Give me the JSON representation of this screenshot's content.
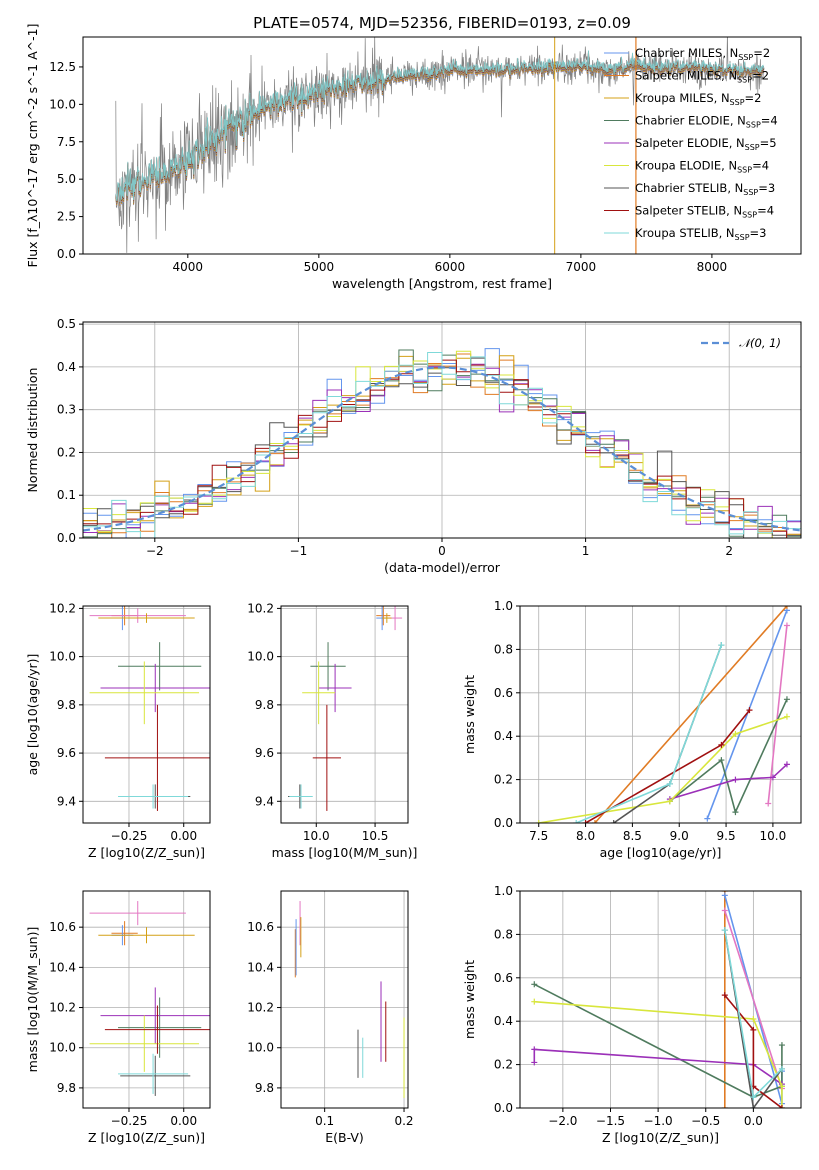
{
  "palette": [
    "#6495ed",
    "#e07b24",
    "#d4a017",
    "#4f7b5e",
    "#9b30b8",
    "#d8e63c",
    "#555555",
    "#a01010",
    "#7fd9d9",
    "#e377c2"
  ],
  "chart_data": [
    {
      "id": "spectrum",
      "type": "line",
      "title": "PLATE=0574, MJD=52356, FIBERID=0193, z=0.09",
      "xlabel": "wavelength [Angstrom, rest frame]",
      "ylabel": "Flux [f_λ10^-17 erg cm^-2 s^-1 A^-1]",
      "xlim": [
        3200,
        8680
      ],
      "ylim": [
        0,
        14.5
      ],
      "xticks": [
        4000,
        5000,
        6000,
        7000,
        8000
      ],
      "yticks": [
        0.0,
        2.5,
        5.0,
        7.5,
        10.0,
        12.5
      ],
      "grid": false,
      "legend_position": "top-right",
      "data_color": "#808080",
      "continuum_x": [
        3450,
        3600,
        3800,
        4000,
        4200,
        4400,
        4600,
        4800,
        5000,
        5200,
        5400,
        5600,
        5800,
        6000,
        6200,
        6400,
        6600,
        6800,
        7000,
        7200,
        7400,
        7600,
        7800,
        8000,
        8200,
        8400
      ],
      "continuum_y": [
        4.0,
        4.6,
        5.3,
        6.2,
        7.6,
        9.0,
        9.8,
        10.4,
        10.8,
        11.2,
        11.5,
        11.8,
        12.0,
        12.2,
        12.3,
        12.3,
        12.4,
        12.5,
        12.5,
        12.3,
        12.6,
        12.4,
        12.5,
        12.3,
        12.3,
        12.2
      ],
      "series": [
        {
          "name": "Chabrier MILES, N_SSP=2",
          "label_main": "Chabrier MILES, N",
          "label_sub": "SSP",
          "label_tail": "=2",
          "color": "#6495ed"
        },
        {
          "name": "Salpeter MILES, N_SSP=2",
          "label_main": "Salpeter MILES, N",
          "label_sub": "SSP",
          "label_tail": "=2",
          "color": "#e07b24"
        },
        {
          "name": "Kroupa MILES, N_SSP=2",
          "label_main": "Kroupa MILES, N",
          "label_sub": "SSP",
          "label_tail": "=2",
          "color": "#d4a017"
        },
        {
          "name": "Chabrier ELODIE, N_SSP=4",
          "label_main": "Chabrier ELODIE, N",
          "label_sub": "SSP",
          "label_tail": "=4",
          "color": "#4f7b5e"
        },
        {
          "name": "Salpeter ELODIE, N_SSP=5",
          "label_main": "Salpeter ELODIE, N",
          "label_sub": "SSP",
          "label_tail": "=5",
          "color": "#9b30b8"
        },
        {
          "name": "Kroupa ELODIE, N_SSP=4",
          "label_main": "Kroupa ELODIE, N",
          "label_sub": "SSP",
          "label_tail": "=4",
          "color": "#d8e63c"
        },
        {
          "name": "Chabrier STELIB, N_SSP=3",
          "label_main": "Chabrier STELIB, N",
          "label_sub": "SSP",
          "label_tail": "=3",
          "color": "#555555"
        },
        {
          "name": "Salpeter STELIB, N_SSP=4",
          "label_main": "Salpeter STELIB, N",
          "label_sub": "SSP",
          "label_tail": "=4",
          "color": "#a01010"
        },
        {
          "name": "Kroupa STELIB, N_SSP=3",
          "label_main": "Kroupa STELIB, N",
          "label_sub": "SSP",
          "label_tail": "=3",
          "color": "#7fd9d9"
        }
      ]
    },
    {
      "id": "residuals",
      "type": "line",
      "xlabel": "(data-model)/error",
      "ylabel": "Normed distribution",
      "xlim": [
        -2.5,
        2.5
      ],
      "ylim": [
        0,
        0.505
      ],
      "xticks": [
        -2,
        -1,
        0,
        1,
        2
      ],
      "yticks": [
        0.0,
        0.1,
        0.2,
        0.3,
        0.4,
        0.5
      ],
      "grid": true,
      "legend_position": "top-right",
      "gaussian_label": "𝒩(0, 1)",
      "bin_width": 0.1
    },
    {
      "id": "age_vs_Z",
      "type": "scatter",
      "xlabel": "Z [log10(Z/Z_sun)]",
      "ylabel": "age [log10(age/yr)]",
      "xlim": [
        -0.46,
        0.12
      ],
      "ylim": [
        9.31,
        10.21
      ],
      "xticks": [
        -0.25,
        0.0
      ],
      "yticks": [
        9.4,
        9.6,
        9.8,
        10.0,
        10.2
      ],
      "grid": true,
      "points": [
        {
          "x": -0.27,
          "y": 10.17,
          "xerr": 0.06,
          "yerr": 0.04,
          "c": "#e07b24"
        },
        {
          "x": -0.28,
          "y": 10.16,
          "xerr": 0.05,
          "yerr": 0.05,
          "c": "#6495ed"
        },
        {
          "x": -0.21,
          "y": 10.17,
          "xerr": 0.22,
          "yerr": 0.03,
          "c": "#e377c2"
        },
        {
          "x": -0.17,
          "y": 10.16,
          "xerr": 0.22,
          "yerr": 0.02,
          "c": "#d4a017"
        },
        {
          "x": -0.11,
          "y": 9.96,
          "xerr": 0.19,
          "yerr": 0.1,
          "c": "#4f7b5e"
        },
        {
          "x": -0.13,
          "y": 9.87,
          "xerr": 0.25,
          "yerr": 0.1,
          "c": "#9b30b8"
        },
        {
          "x": -0.18,
          "y": 9.85,
          "xerr": 0.25,
          "yerr": 0.13,
          "c": "#d8e63c"
        },
        {
          "x": -0.13,
          "y": 9.42,
          "xerr": 0.16,
          "yerr": 0.05,
          "c": "#555555"
        },
        {
          "x": -0.12,
          "y": 9.58,
          "xerr": 0.24,
          "yerr": 0.22,
          "c": "#a01010"
        },
        {
          "x": -0.14,
          "y": 9.42,
          "xerr": 0.16,
          "yerr": 0.05,
          "c": "#7fd9d9"
        }
      ]
    },
    {
      "id": "age_vs_mass",
      "type": "scatter",
      "xlabel": "mass [log10(M/M_sun)]",
      "ylabel": "",
      "xlim": [
        9.7,
        10.78
      ],
      "ylim": [
        9.31,
        10.21
      ],
      "xticks": [
        10.0,
        10.5
      ],
      "yticks": [
        9.4,
        9.6,
        9.8,
        10.0,
        10.2
      ],
      "grid": true,
      "points": [
        {
          "x": 10.57,
          "y": 10.17,
          "xerr": 0.06,
          "yerr": 0.04,
          "c": "#e07b24"
        },
        {
          "x": 10.56,
          "y": 10.16,
          "xerr": 0.05,
          "yerr": 0.05,
          "c": "#6495ed"
        },
        {
          "x": 10.67,
          "y": 10.16,
          "xerr": 0.06,
          "yerr": 0.05,
          "c": "#e377c2"
        },
        {
          "x": 10.6,
          "y": 10.16,
          "xerr": 0.04,
          "yerr": 0.02,
          "c": "#d4a017"
        },
        {
          "x": 10.1,
          "y": 9.96,
          "xerr": 0.15,
          "yerr": 0.1,
          "c": "#4f7b5e"
        },
        {
          "x": 10.16,
          "y": 9.87,
          "xerr": 0.14,
          "yerr": 0.1,
          "c": "#9b30b8"
        },
        {
          "x": 10.02,
          "y": 9.85,
          "xerr": 0.14,
          "yerr": 0.13,
          "c": "#d8e63c"
        },
        {
          "x": 9.86,
          "y": 9.42,
          "xerr": 0.1,
          "yerr": 0.05,
          "c": "#555555"
        },
        {
          "x": 10.09,
          "y": 9.58,
          "xerr": 0.12,
          "yerr": 0.22,
          "c": "#a01010"
        },
        {
          "x": 9.87,
          "y": 9.42,
          "xerr": 0.1,
          "yerr": 0.05,
          "c": "#7fd9d9"
        }
      ]
    },
    {
      "id": "weight_vs_age",
      "type": "line",
      "xlabel": "age [log10(age/yr)]",
      "ylabel": "mass weight",
      "xlim": [
        7.3,
        10.3
      ],
      "ylim": [
        0,
        1.0
      ],
      "xticks": [
        7.5,
        8.0,
        8.5,
        9.0,
        9.5,
        10.0
      ],
      "yticks": [
        0.0,
        0.2,
        0.4,
        0.6,
        0.8,
        1.0
      ],
      "grid": true,
      "series": [
        {
          "c": "#6495ed",
          "x": [
            9.3,
            10.15
          ],
          "y": [
            0.02,
            0.98
          ]
        },
        {
          "c": "#e07b24",
          "x": [
            8.1,
            10.15
          ],
          "y": [
            0.0,
            1.0
          ]
        },
        {
          "c": "#e377c2",
          "x": [
            9.95,
            10.15
          ],
          "y": [
            0.09,
            0.91
          ]
        },
        {
          "c": "#4f7b5e",
          "x": [
            8.9,
            9.45,
            9.6,
            10.15
          ],
          "y": [
            0.1,
            0.29,
            0.05,
            0.57
          ]
        },
        {
          "c": "#9b30b8",
          "x": [
            8.9,
            9.6,
            10.0,
            10.15
          ],
          "y": [
            0.11,
            0.2,
            0.21,
            0.27
          ]
        },
        {
          "c": "#d8e63c",
          "x": [
            7.5,
            8.9,
            9.6,
            10.15
          ],
          "y": [
            0.0,
            0.1,
            0.41,
            0.49
          ]
        },
        {
          "c": "#555555",
          "x": [
            8.3,
            8.9,
            9.45
          ],
          "y": [
            0.0,
            0.18,
            0.82
          ]
        },
        {
          "c": "#a01010",
          "x": [
            8.0,
            9.45,
            9.75
          ],
          "y": [
            0.0,
            0.36,
            0.52
          ]
        },
        {
          "c": "#7fd9d9",
          "x": [
            7.9,
            8.9,
            9.45
          ],
          "y": [
            0.0,
            0.18,
            0.82
          ]
        }
      ]
    },
    {
      "id": "mass_vs_Z",
      "type": "scatter",
      "xlabel": "Z [log10(Z/Z_sun)]",
      "ylabel": "mass [log10(M/M_sun)]",
      "xlim": [
        -0.46,
        0.12
      ],
      "ylim": [
        9.7,
        10.78
      ],
      "xticks": [
        -0.25,
        0.0
      ],
      "yticks": [
        9.8,
        10.0,
        10.2,
        10.4,
        10.6
      ],
      "grid": true,
      "points": [
        {
          "x": -0.27,
          "y": 10.57,
          "xerr": 0.06,
          "yerr": 0.06,
          "c": "#e07b24"
        },
        {
          "x": -0.28,
          "y": 10.56,
          "xerr": 0.05,
          "yerr": 0.05,
          "c": "#6495ed"
        },
        {
          "x": -0.21,
          "y": 10.67,
          "xerr": 0.22,
          "yerr": 0.06,
          "c": "#e377c2"
        },
        {
          "x": -0.17,
          "y": 10.56,
          "xerr": 0.22,
          "yerr": 0.04,
          "c": "#d4a017"
        },
        {
          "x": -0.11,
          "y": 10.1,
          "xerr": 0.19,
          "yerr": 0.15,
          "c": "#4f7b5e"
        },
        {
          "x": -0.13,
          "y": 10.16,
          "xerr": 0.25,
          "yerr": 0.14,
          "c": "#9b30b8"
        },
        {
          "x": -0.18,
          "y": 10.02,
          "xerr": 0.25,
          "yerr": 0.14,
          "c": "#d8e63c"
        },
        {
          "x": -0.13,
          "y": 9.86,
          "xerr": 0.16,
          "yerr": 0.1,
          "c": "#555555"
        },
        {
          "x": -0.12,
          "y": 10.09,
          "xerr": 0.24,
          "yerr": 0.12,
          "c": "#a01010"
        },
        {
          "x": -0.14,
          "y": 9.87,
          "xerr": 0.16,
          "yerr": 0.1,
          "c": "#7fd9d9"
        }
      ]
    },
    {
      "id": "mass_vs_ebv",
      "type": "scatter",
      "xlabel": "E(B-V)",
      "ylabel": "",
      "xlim": [
        0.045,
        0.205
      ],
      "ylim": [
        9.7,
        10.78
      ],
      "xticks": [
        0.1,
        0.2
      ],
      "yticks": [
        9.8,
        10.0,
        10.2,
        10.4,
        10.6
      ],
      "grid": true,
      "points": [
        {
          "x": 0.063,
          "y": 10.47,
          "xerr": 0.0,
          "yerr": 0.12,
          "c": "#e07b24"
        },
        {
          "x": 0.064,
          "y": 10.5,
          "xerr": 0.0,
          "yerr": 0.14,
          "c": "#6495ed"
        },
        {
          "x": 0.069,
          "y": 10.62,
          "xerr": 0.0,
          "yerr": 0.11,
          "c": "#e377c2"
        },
        {
          "x": 0.07,
          "y": 10.55,
          "xerr": 0.0,
          "yerr": 0.1,
          "c": "#d4a017"
        },
        {
          "x": 0.142,
          "y": 9.97,
          "xerr": 0.0,
          "yerr": 0.12,
          "c": "#555555"
        },
        {
          "x": 0.148,
          "y": 9.95,
          "xerr": 0.0,
          "yerr": 0.1,
          "c": "#7fd9d9"
        },
        {
          "x": 0.171,
          "y": 10.13,
          "xerr": 0.0,
          "yerr": 0.2,
          "c": "#9b30b8"
        },
        {
          "x": 0.177,
          "y": 10.08,
          "xerr": 0.0,
          "yerr": 0.15,
          "c": "#a01010"
        },
        {
          "x": 0.2,
          "y": 9.95,
          "xerr": 0.0,
          "yerr": 0.2,
          "c": "#d8e63c"
        }
      ]
    },
    {
      "id": "weight_vs_Z",
      "type": "line",
      "xlabel": "Z [log10(Z/Z_sun)]",
      "ylabel": "mass weight",
      "xlim": [
        -2.45,
        0.5
      ],
      "ylim": [
        0,
        1.0
      ],
      "xticks": [
        -2.0,
        -1.5,
        -1.0,
        -0.5,
        0.0
      ],
      "yticks": [
        0.0,
        0.2,
        0.4,
        0.6,
        0.8,
        1.0
      ],
      "grid": true,
      "series": [
        {
          "c": "#e07b24",
          "x": [
            -0.3,
            -0.3
          ],
          "y": [
            0.0,
            1.0
          ]
        },
        {
          "c": "#6495ed",
          "x": [
            -0.3,
            0.3,
            0.3
          ],
          "y": [
            0.98,
            0.02,
            0.17
          ]
        },
        {
          "c": "#e377c2",
          "x": [
            -0.3,
            0.3
          ],
          "y": [
            0.91,
            0.09
          ]
        },
        {
          "c": "#4f7b5e",
          "x": [
            -2.3,
            0.0,
            0.3,
            0.3
          ],
          "y": [
            0.57,
            0.05,
            0.1,
            0.29
          ]
        },
        {
          "c": "#9b30b8",
          "x": [
            -2.3,
            -2.3,
            0.0,
            0.3
          ],
          "y": [
            0.21,
            0.27,
            0.2,
            0.11
          ]
        },
        {
          "c": "#d8e63c",
          "x": [
            -2.3,
            0.0,
            0.3,
            0.3
          ],
          "y": [
            0.49,
            0.41,
            0.1,
            0.0
          ]
        },
        {
          "c": "#555555",
          "x": [
            -0.3,
            0.0,
            0.3
          ],
          "y": [
            0.82,
            0.0,
            0.18
          ]
        },
        {
          "c": "#a01010",
          "x": [
            -0.3,
            0.0,
            0.0,
            0.3
          ],
          "y": [
            0.52,
            0.36,
            0.1,
            0.0
          ]
        },
        {
          "c": "#7fd9d9",
          "x": [
            -0.3,
            0.0,
            0.3
          ],
          "y": [
            0.82,
            0.05,
            0.18
          ]
        }
      ]
    }
  ]
}
